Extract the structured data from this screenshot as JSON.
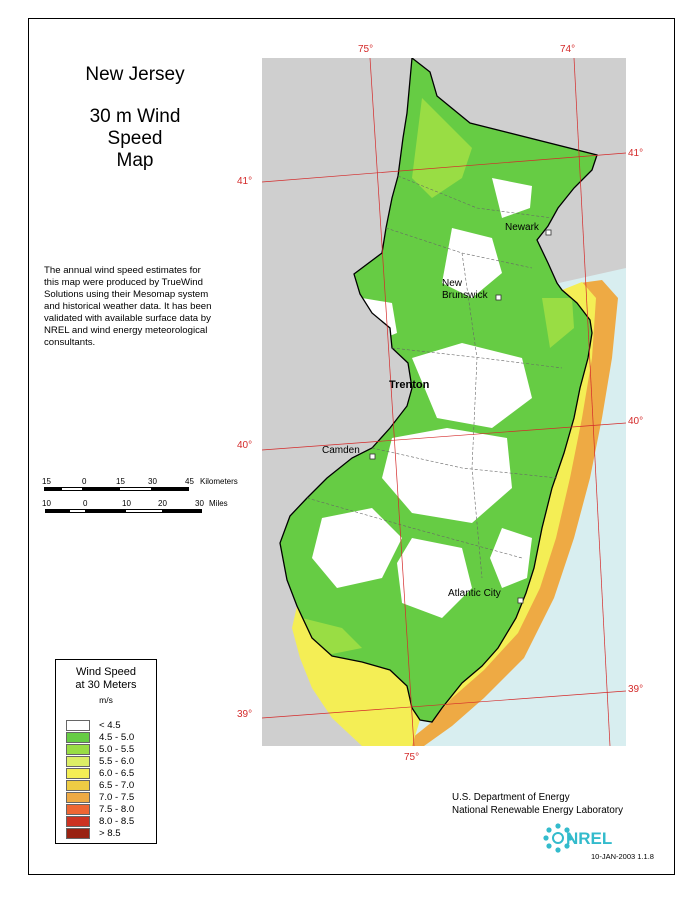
{
  "title": {
    "state": "New Jersey",
    "map_lines": [
      "30 m Wind",
      "Speed",
      "Map"
    ]
  },
  "description_lines": [
    "The annual wind speed estimates for",
    "this map were produced by TrueWind",
    "Solutions using their Mesomap system",
    "and historical weather data.  It has been",
    "validated with available surface data by",
    "NREL and wind energy meteorological",
    "consultants."
  ],
  "scale_km": {
    "ticks": [
      "15",
      "0",
      "15",
      "30",
      "45"
    ],
    "unit": "Kilometers"
  },
  "scale_mi": {
    "ticks": [
      "10",
      "0",
      "10",
      "20",
      "30"
    ],
    "unit": "Miles"
  },
  "coordinates": {
    "lon_75_top": "75°",
    "lon_74_top": "74°",
    "lat_41_left": "41°",
    "lat_41_right": "41°",
    "lat_40_left": "40°",
    "lat_40_right": "40°",
    "lat_39_left": "39°",
    "lat_39_right": "39°",
    "lon_75_bottom": "75°"
  },
  "cities": {
    "newark": "Newark",
    "new_brunswick_1": "New",
    "new_brunswick_2": "Brunswick",
    "trenton": "Trenton",
    "camden": "Camden",
    "atlantic_city": "Atlantic City"
  },
  "legend": {
    "title_1": "Wind Speed",
    "title_2": "at 30 Meters",
    "unit": "m/s",
    "classes": [
      {
        "label": "< 4.5",
        "color": "#ffffff"
      },
      {
        "label": "4.5 - 5.0",
        "color": "#66cc44"
      },
      {
        "label": "5.0 - 5.5",
        "color": "#99dd44"
      },
      {
        "label": "5.5 - 6.0",
        "color": "#ddee66"
      },
      {
        "label": "6.0 - 6.5",
        "color": "#f4ee55"
      },
      {
        "label": "6.5 - 7.0",
        "color": "#eecc44"
      },
      {
        "label": "7.0 - 7.5",
        "color": "#eeaa44"
      },
      {
        "label": "7.5 - 8.0",
        "color": "#ee6633"
      },
      {
        "label": "8.0 - 8.5",
        "color": "#cc3322"
      },
      {
        "label": "> 8.5",
        "color": "#992211"
      }
    ]
  },
  "credit": {
    "line1": "U.S. Department of Energy",
    "line2": "National Renewable Energy Laboratory"
  },
  "logo_text": "NREL",
  "version": "10-JAN-2003 1.1.8",
  "colors": {
    "land_outside": "#cfcfcf",
    "water": "#d8eef0",
    "grid_lines": "#d42a2a"
  }
}
